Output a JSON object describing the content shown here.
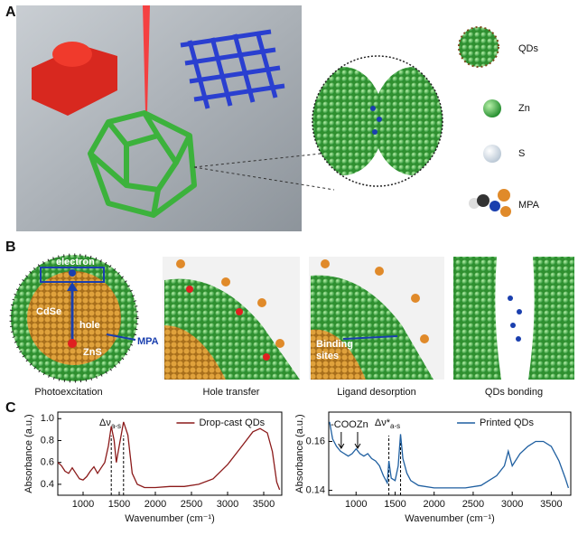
{
  "panel_labels": [
    "A",
    "B",
    "C"
  ],
  "panel_a": {
    "legend": [
      "QDs",
      "Zn",
      "S",
      "MPA"
    ]
  },
  "panel_b": {
    "captions": [
      "Photoexcitation",
      "Hole transfer",
      "Ligand desorption",
      "QDs bonding"
    ],
    "labels": {
      "electron": "electron",
      "core": "CdSe",
      "hole": "hole",
      "shell": "ZnS",
      "ligand": "MPA",
      "binding": [
        "Binding",
        "sites"
      ]
    }
  },
  "chart_data": [
    {
      "type": "line",
      "xlabel": "Wavenumber (cm⁻¹)",
      "ylabel": "Absorbance (a.u.)",
      "x": [
        650,
        700,
        750,
        800,
        850,
        900,
        950,
        1000,
        1050,
        1100,
        1150,
        1200,
        1250,
        1300,
        1350,
        1390,
        1430,
        1460,
        1500,
        1560,
        1620,
        1680,
        1750,
        1850,
        2000,
        2200,
        2400,
        2600,
        2800,
        3000,
        3200,
        3350,
        3450,
        3550,
        3620,
        3680,
        3720
      ],
      "series": [
        {
          "name": "Drop-cast QDs",
          "color": "#8b1a1a",
          "values": [
            0.6,
            0.57,
            0.52,
            0.5,
            0.55,
            0.5,
            0.45,
            0.44,
            0.47,
            0.52,
            0.56,
            0.5,
            0.55,
            0.6,
            0.75,
            0.93,
            0.8,
            0.6,
            0.75,
            0.97,
            0.85,
            0.5,
            0.4,
            0.37,
            0.37,
            0.38,
            0.38,
            0.4,
            0.45,
            0.58,
            0.75,
            0.88,
            0.91,
            0.87,
            0.7,
            0.42,
            0.35
          ]
        }
      ],
      "xlim": [
        650,
        3750
      ],
      "ylim": [
        0.3,
        1.06
      ],
      "xticks": [
        1000,
        1500,
        2000,
        2500,
        3000,
        3500
      ],
      "yticks": [
        0.4,
        0.6,
        0.8,
        {
          "value": 1,
          "label": "1.0"
        }
      ],
      "annotation": {
        "text": "Δν",
        "sub": "a-s"
      },
      "markers": [
        1390,
        1560
      ]
    },
    {
      "type": "line",
      "xlabel": "Wavenumber (cm⁻¹)",
      "ylabel": "Absorbance (a.u.)",
      "x": [
        660,
        700,
        750,
        800,
        850,
        900,
        950,
        1000,
        1050,
        1100,
        1150,
        1200,
        1250,
        1300,
        1350,
        1400,
        1420,
        1450,
        1500,
        1540,
        1570,
        1600,
        1650,
        1700,
        1800,
        2000,
        2200,
        2400,
        2600,
        2800,
        2900,
        2950,
        3000,
        3100,
        3200,
        3300,
        3400,
        3500,
        3600,
        3680,
        3720
      ],
      "series": [
        {
          "name": "Printed QDs",
          "color": "#1f5fa0",
          "values": [
            0.168,
            0.161,
            0.158,
            0.156,
            0.155,
            0.154,
            0.155,
            0.157,
            0.155,
            0.154,
            0.155,
            0.153,
            0.152,
            0.15,
            0.146,
            0.143,
            0.152,
            0.145,
            0.144,
            0.15,
            0.163,
            0.153,
            0.147,
            0.144,
            0.142,
            0.141,
            0.141,
            0.141,
            0.142,
            0.146,
            0.15,
            0.156,
            0.15,
            0.155,
            0.158,
            0.16,
            0.16,
            0.158,
            0.152,
            0.145,
            0.141
          ]
        }
      ],
      "xlim": [
        650,
        3750
      ],
      "ylim": [
        0.138,
        0.172
      ],
      "xticks": [
        1000,
        1500,
        2000,
        2500,
        3000,
        3500
      ],
      "yticks": [
        0.14,
        0.16
      ],
      "annotation": {
        "text": "Δν*",
        "sub": "a-s"
      },
      "markers": [
        1420,
        1570
      ],
      "group_label": "-COOZn",
      "arrows": [
        810,
        1020
      ]
    }
  ]
}
